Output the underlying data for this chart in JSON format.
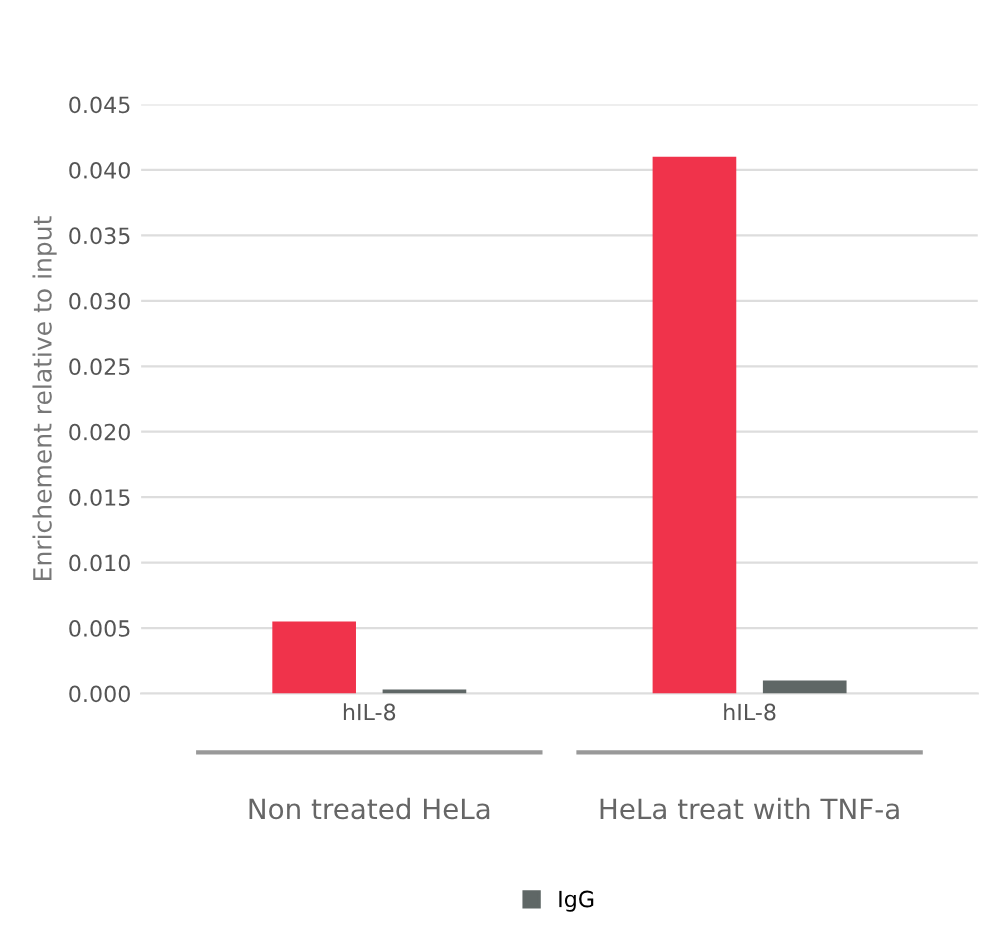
{
  "chart_data": {
    "type": "bar",
    "ylabel": "Enrichement relative to input",
    "categories": [
      "hIL-8",
      "hIL-8"
    ],
    "series": [
      {
        "color": "#f0334b",
        "values": [
          0.0055,
          0.041
        ]
      },
      {
        "name": "IgG",
        "color": "#5f6766",
        "values": [
          0.0003,
          0.001
        ]
      }
    ],
    "ylim": [
      0,
      0.045
    ],
    "yticks": [
      {
        "value": 0,
        "label": "0.000"
      },
      {
        "value": 0.005,
        "label": "0.005"
      },
      {
        "value": 0.01,
        "label": "0.010"
      },
      {
        "value": 0.015,
        "label": "0.015"
      },
      {
        "value": 0.02,
        "label": "0.020"
      },
      {
        "value": 0.025,
        "label": "0.025"
      },
      {
        "value": 0.03,
        "label": "0.030"
      },
      {
        "value": 0.035,
        "label": "0.035"
      },
      {
        "value": 0.04,
        "label": "0.040"
      },
      {
        "value": 0.045,
        "label": "0.045"
      }
    ],
    "annotations": [
      "Non treated HeLa",
      "HeLa treat with TNF-a"
    ],
    "grid": "y",
    "legend": "bottom"
  }
}
